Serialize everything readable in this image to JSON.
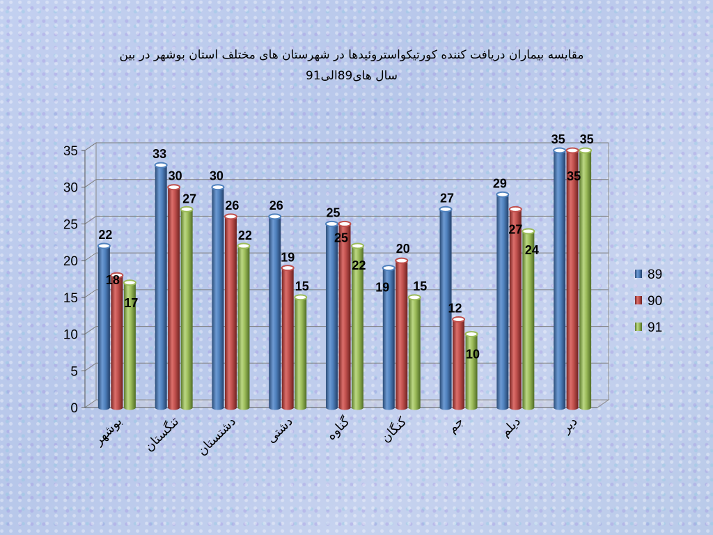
{
  "chart_data": {
    "type": "bar",
    "title_line1": "مقایسه بیماران دریافت کننده کورتیکواستروئیدها در شهرستان های مختلف استان بوشهر در بین",
    "title_line2": "سال های89الی91",
    "xlabel": "",
    "ylabel": "",
    "categories": [
      "بوشهر",
      "تنگستان",
      "دشتستان",
      "دشتی",
      "گناوه",
      "کنگان",
      "جم",
      "دیلم",
      "دیر"
    ],
    "series": [
      {
        "name": "89",
        "color": "#4f81bd",
        "values": [
          22,
          33,
          30,
          26,
          25,
          19,
          27,
          29,
          35
        ]
      },
      {
        "name": "90",
        "color": "#c0504d",
        "values": [
          18,
          30,
          26,
          19,
          25,
          20,
          12,
          27,
          35
        ]
      },
      {
        "name": "91",
        "color": "#9bbb59",
        "values": [
          17,
          27,
          22,
          15,
          22,
          15,
          10,
          24,
          35
        ]
      }
    ],
    "ylim": [
      0,
      35
    ],
    "yticks": [
      0,
      5,
      10,
      15,
      20,
      25,
      30,
      35
    ],
    "grid": true,
    "legend_position": "right"
  }
}
